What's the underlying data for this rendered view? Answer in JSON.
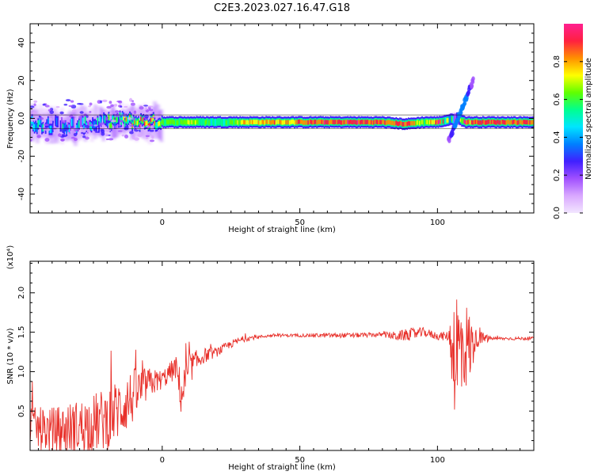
{
  "title": "C2E3.2023.027.16.47.G18",
  "colorbar": {
    "label": "Normalized spectral amplitude",
    "ticks": [
      "0.0",
      "0.2",
      "0.4",
      "0.6",
      "0.8"
    ],
    "range": [
      0.0,
      1.0
    ],
    "colors": [
      "#f2e6ff",
      "#d9a8ff",
      "#a050ff",
      "#4020ff",
      "#0080ff",
      "#00e5ff",
      "#00ff90",
      "#60ff00",
      "#ffff00",
      "#ff9000",
      "#ff2040",
      "#ff2090"
    ]
  },
  "chart_data": [
    {
      "type": "heatmap",
      "xlabel": "Height of straight line (km)",
      "ylabel": "Frequency (Hz)",
      "xlim": [
        -48,
        135
      ],
      "ylim": [
        -50,
        50
      ],
      "xticks": [
        0,
        50,
        100
      ],
      "yticks": [
        -40,
        -20,
        0,
        20,
        40
      ],
      "grid": false,
      "ridge": [
        {
          "x": -45,
          "y": -3,
          "amp": 0.35
        },
        {
          "x": -35,
          "y": -4,
          "amp": 0.3
        },
        {
          "x": -25,
          "y": -3,
          "amp": 0.35
        },
        {
          "x": -15,
          "y": -1,
          "amp": 0.45
        },
        {
          "x": -8,
          "y": -2,
          "amp": 0.85
        },
        {
          "x": 0,
          "y": -2,
          "amp": 0.55
        },
        {
          "x": 10,
          "y": -2,
          "amp": 0.7
        },
        {
          "x": 20,
          "y": -2,
          "amp": 0.5
        },
        {
          "x": 30,
          "y": -2,
          "amp": 0.75
        },
        {
          "x": 40,
          "y": -2,
          "amp": 0.8
        },
        {
          "x": 50,
          "y": -2,
          "amp": 0.8
        },
        {
          "x": 60,
          "y": -2,
          "amp": 0.9
        },
        {
          "x": 70,
          "y": -2,
          "amp": 0.9
        },
        {
          "x": 80,
          "y": -2,
          "amp": 0.85
        },
        {
          "x": 88,
          "y": -3,
          "amp": 0.9
        },
        {
          "x": 95,
          "y": -2,
          "amp": 0.6
        },
        {
          "x": 100,
          "y": -2,
          "amp": 0.85
        },
        {
          "x": 107,
          "y": 0,
          "amp": 0.3
        },
        {
          "x": 110,
          "y": -2,
          "amp": 0.9
        },
        {
          "x": 120,
          "y": -2,
          "amp": 0.88
        },
        {
          "x": 135,
          "y": -2,
          "amp": 0.88
        }
      ]
    },
    {
      "type": "line",
      "xlabel": "Height of straight line (km)",
      "ylabel": "SNR (10 * v/v)",
      "yscale_label": "(x10⁴)",
      "xlim": [
        -48,
        135
      ],
      "ylim": [
        0.0,
        2.4
      ],
      "xticks": [
        0,
        50,
        100
      ],
      "yticks": [
        0.5,
        1.0,
        1.5,
        2.0
      ],
      "color": "#e8302a",
      "series": [
        {
          "x": [
            -48,
            -40,
            -30,
            -20,
            -15,
            -10,
            -5,
            0,
            5,
            7,
            10,
            15,
            20,
            25,
            30,
            35,
            40,
            50,
            60,
            70,
            80,
            85,
            90,
            95,
            100,
            104,
            106,
            108,
            110,
            112,
            114,
            120,
            135
          ],
          "values": [
            0.3,
            0.25,
            0.3,
            0.4,
            0.55,
            0.7,
            0.85,
            0.9,
            1.05,
            0.7,
            1.05,
            1.2,
            1.25,
            1.35,
            1.42,
            1.44,
            1.46,
            1.46,
            1.46,
            1.46,
            1.47,
            1.45,
            1.47,
            1.5,
            1.45,
            1.45,
            1.3,
            1.2,
            1.35,
            1.3,
            1.42,
            1.42,
            1.42
          ],
          "noise": [
            0.25,
            0.3,
            0.35,
            0.4,
            0.4,
            0.35,
            0.2,
            0.12,
            0.15,
            0.3,
            0.2,
            0.1,
            0.06,
            0.05,
            0.04,
            0.02,
            0.02,
            0.02,
            0.03,
            0.03,
            0.03,
            0.06,
            0.08,
            0.06,
            0.05,
            0.06,
            0.8,
            1.0,
            0.6,
            0.45,
            0.12,
            0.02,
            0.02
          ]
        }
      ]
    }
  ]
}
